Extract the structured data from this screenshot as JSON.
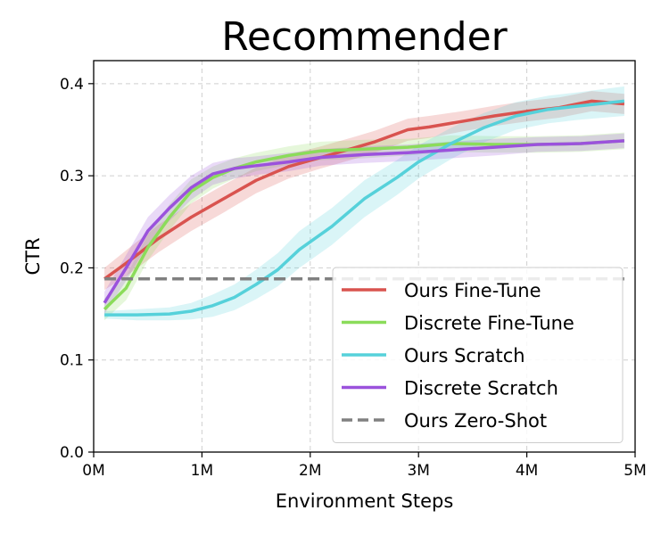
{
  "chart_data": {
    "type": "line",
    "title": "Recommender",
    "xlabel": "Environment Steps",
    "ylabel": "CTR",
    "xlim": [
      0,
      5000000
    ],
    "ylim": [
      0,
      0.425
    ],
    "x_ticks": [
      0,
      1000000,
      2000000,
      3000000,
      4000000,
      5000000
    ],
    "x_tick_labels": [
      "0M",
      "1M",
      "2M",
      "3M",
      "4M",
      "5M"
    ],
    "y_ticks": [
      0.0,
      0.1,
      0.2,
      0.3,
      0.4
    ],
    "y_tick_labels": [
      "0.0",
      "0.1",
      "0.2",
      "0.3",
      "0.4"
    ],
    "grid": true,
    "legend_position": "lower-right",
    "series": [
      {
        "name": "Ours Fine-Tune",
        "color": "#d9534f",
        "style": "solid",
        "x": [
          100000,
          300000,
          600000,
          900000,
          1200000,
          1500000,
          1800000,
          2100000,
          2400000,
          2600000,
          2900000,
          3100000,
          3400000,
          3700000,
          4000000,
          4300000,
          4600000,
          4900000
        ],
        "y": [
          0.188,
          0.205,
          0.232,
          0.255,
          0.275,
          0.295,
          0.31,
          0.32,
          0.33,
          0.337,
          0.35,
          0.353,
          0.359,
          0.365,
          0.37,
          0.374,
          0.381,
          0.378
        ],
        "band": [
          0.012,
          0.014,
          0.015,
          0.015,
          0.015,
          0.014,
          0.013,
          0.012,
          0.012,
          0.012,
          0.012,
          0.012,
          0.011,
          0.011,
          0.011,
          0.011,
          0.011,
          0.011
        ]
      },
      {
        "name": "Discrete Fine-Tune",
        "color": "#8bdc5a",
        "style": "solid",
        "x": [
          100000,
          300000,
          500000,
          700000,
          900000,
          1100000,
          1300000,
          1500000,
          1800000,
          2100000,
          2500000,
          2900000,
          3300000,
          3700000,
          4100000,
          4500000,
          4900000
        ],
        "y": [
          0.155,
          0.178,
          0.222,
          0.255,
          0.283,
          0.298,
          0.308,
          0.315,
          0.322,
          0.327,
          0.329,
          0.331,
          0.335,
          0.334,
          0.334,
          0.335,
          0.338
        ],
        "band": [
          0.012,
          0.013,
          0.014,
          0.014,
          0.013,
          0.012,
          0.011,
          0.01,
          0.01,
          0.01,
          0.01,
          0.009,
          0.009,
          0.009,
          0.009,
          0.009,
          0.009
        ]
      },
      {
        "name": "Ours Scratch",
        "color": "#56d1da",
        "style": "solid",
        "x": [
          100000,
          400000,
          700000,
          900000,
          1100000,
          1300000,
          1500000,
          1700000,
          1900000,
          2200000,
          2500000,
          2800000,
          3000000,
          3300000,
          3600000,
          3900000,
          4200000,
          4500000,
          4900000
        ],
        "y": [
          0.149,
          0.149,
          0.15,
          0.153,
          0.159,
          0.168,
          0.182,
          0.198,
          0.22,
          0.245,
          0.275,
          0.298,
          0.315,
          0.335,
          0.352,
          0.365,
          0.372,
          0.376,
          0.381
        ],
        "band": [
          0.004,
          0.006,
          0.007,
          0.009,
          0.012,
          0.014,
          0.016,
          0.018,
          0.02,
          0.02,
          0.02,
          0.019,
          0.018,
          0.017,
          0.016,
          0.015,
          0.015,
          0.015,
          0.016
        ]
      },
      {
        "name": "Discrete Scratch",
        "color": "#9b52dc",
        "style": "solid",
        "x": [
          100000,
          300000,
          500000,
          700000,
          900000,
          1100000,
          1300000,
          1500000,
          1800000,
          2100000,
          2500000,
          2900000,
          3300000,
          3700000,
          4100000,
          4500000,
          4900000
        ],
        "y": [
          0.162,
          0.2,
          0.24,
          0.265,
          0.287,
          0.302,
          0.308,
          0.311,
          0.315,
          0.32,
          0.323,
          0.325,
          0.328,
          0.331,
          0.334,
          0.335,
          0.338
        ],
        "band": [
          0.012,
          0.014,
          0.015,
          0.014,
          0.013,
          0.012,
          0.011,
          0.01,
          0.01,
          0.009,
          0.009,
          0.009,
          0.009,
          0.009,
          0.008,
          0.008,
          0.008
        ]
      },
      {
        "name": "Ours Zero-Shot",
        "color": "#808080",
        "style": "dashed",
        "x": [
          100000,
          4900000
        ],
        "y": [
          0.188,
          0.188
        ],
        "band": [
          0,
          0
        ]
      }
    ]
  }
}
